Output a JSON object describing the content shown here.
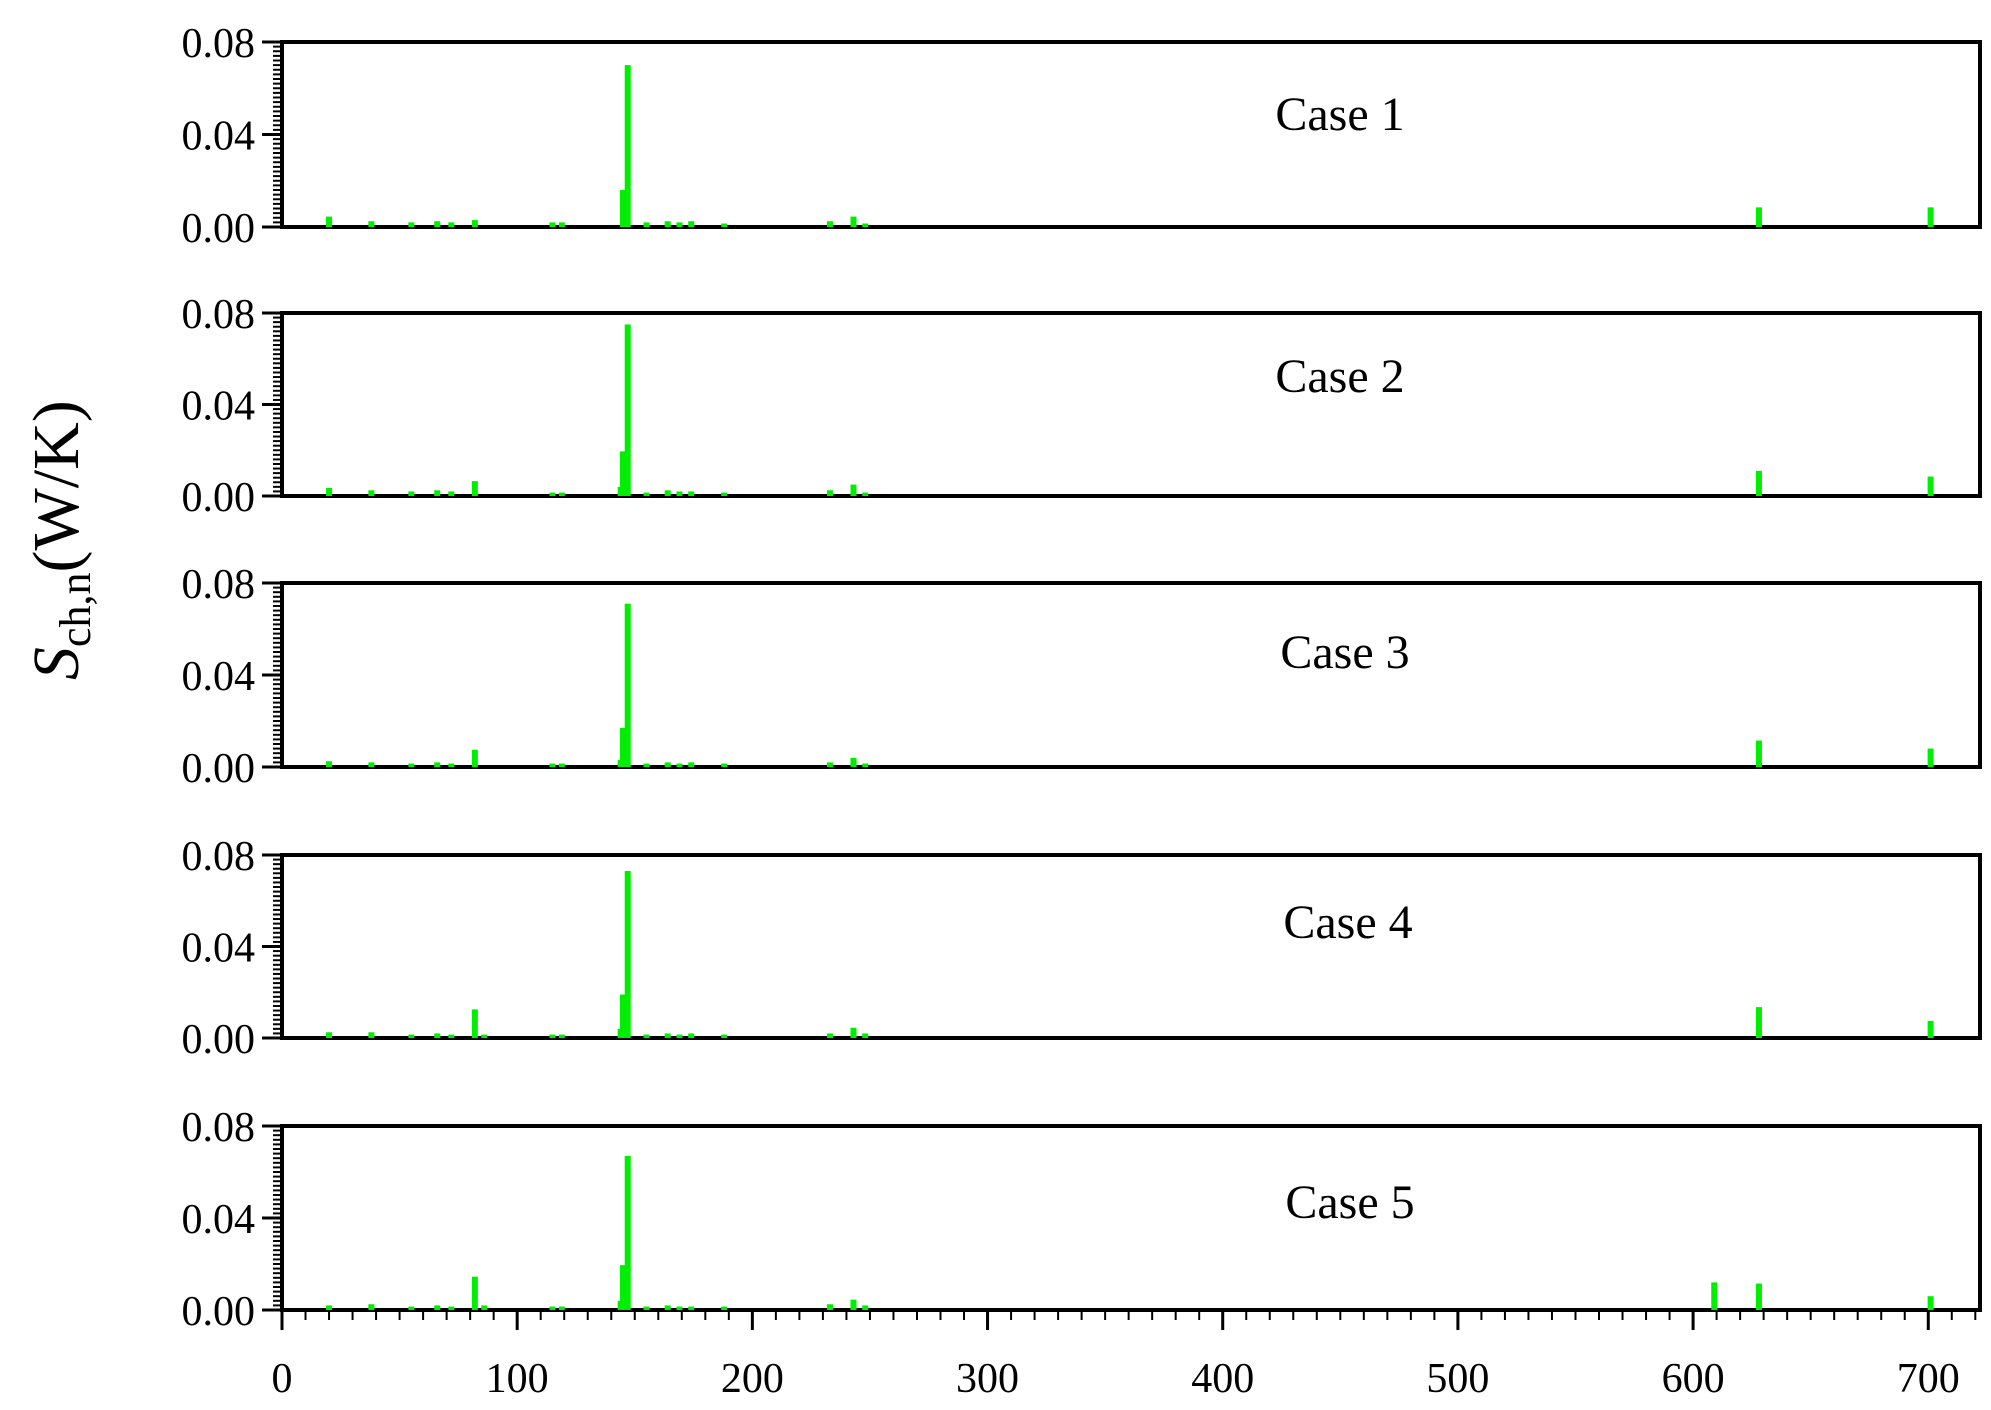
{
  "chart_data": {
    "type": "bar",
    "ylabel_main": "S",
    "ylabel_sub": "ch,n",
    "ylabel_unit": "(W/K)",
    "x_ticks": [
      "0",
      "100",
      "200",
      "300",
      "400",
      "500",
      "600",
      "700"
    ],
    "x_tick_values": [
      0,
      100,
      200,
      300,
      400,
      500,
      600,
      700
    ],
    "xlim": [
      0,
      722
    ],
    "y_ticks": [
      "0.00",
      "0.04",
      "0.08"
    ],
    "y_tick_values": [
      0,
      0.04,
      0.08
    ],
    "ylim": [
      0,
      0.08
    ],
    "bar_color": "#00ee00",
    "panels": [
      {
        "label": "Case 1",
        "bars": [
          {
            "x": 20,
            "y": 0.0045
          },
          {
            "x": 38,
            "y": 0.0025
          },
          {
            "x": 55,
            "y": 0.002
          },
          {
            "x": 66,
            "y": 0.0025
          },
          {
            "x": 72,
            "y": 0.002
          },
          {
            "x": 82,
            "y": 0.003
          },
          {
            "x": 115,
            "y": 0.002
          },
          {
            "x": 119,
            "y": 0.002
          },
          {
            "x": 145,
            "y": 0.016
          },
          {
            "x": 147,
            "y": 0.07
          },
          {
            "x": 155,
            "y": 0.002
          },
          {
            "x": 164,
            "y": 0.0025
          },
          {
            "x": 169,
            "y": 0.002
          },
          {
            "x": 174,
            "y": 0.0025
          },
          {
            "x": 188,
            "y": 0.0015
          },
          {
            "x": 233,
            "y": 0.0025
          },
          {
            "x": 243,
            "y": 0.0045
          },
          {
            "x": 248,
            "y": 0.0015
          },
          {
            "x": 628,
            "y": 0.0085
          },
          {
            "x": 701,
            "y": 0.0085
          }
        ]
      },
      {
        "label": "Case 2",
        "bars": [
          {
            "x": 20,
            "y": 0.0035
          },
          {
            "x": 38,
            "y": 0.0025
          },
          {
            "x": 55,
            "y": 0.002
          },
          {
            "x": 66,
            "y": 0.0025
          },
          {
            "x": 72,
            "y": 0.002
          },
          {
            "x": 82,
            "y": 0.0065
          },
          {
            "x": 115,
            "y": 0.0015
          },
          {
            "x": 119,
            "y": 0.0015
          },
          {
            "x": 144,
            "y": 0.004
          },
          {
            "x": 145,
            "y": 0.0195
          },
          {
            "x": 147,
            "y": 0.075
          },
          {
            "x": 155,
            "y": 0.0015
          },
          {
            "x": 164,
            "y": 0.0025
          },
          {
            "x": 169,
            "y": 0.002
          },
          {
            "x": 174,
            "y": 0.002
          },
          {
            "x": 188,
            "y": 0.0015
          },
          {
            "x": 233,
            "y": 0.0025
          },
          {
            "x": 243,
            "y": 0.005
          },
          {
            "x": 248,
            "y": 0.0015
          },
          {
            "x": 628,
            "y": 0.011
          },
          {
            "x": 701,
            "y": 0.0085
          }
        ]
      },
      {
        "label": "Case 3",
        "bars": [
          {
            "x": 20,
            "y": 0.0025
          },
          {
            "x": 38,
            "y": 0.002
          },
          {
            "x": 55,
            "y": 0.0015
          },
          {
            "x": 66,
            "y": 0.002
          },
          {
            "x": 72,
            "y": 0.0015
          },
          {
            "x": 82,
            "y": 0.0075
          },
          {
            "x": 115,
            "y": 0.0015
          },
          {
            "x": 119,
            "y": 0.0015
          },
          {
            "x": 144,
            "y": 0.003
          },
          {
            "x": 145,
            "y": 0.017
          },
          {
            "x": 147,
            "y": 0.071
          },
          {
            "x": 155,
            "y": 0.0015
          },
          {
            "x": 164,
            "y": 0.002
          },
          {
            "x": 169,
            "y": 0.0015
          },
          {
            "x": 174,
            "y": 0.002
          },
          {
            "x": 188,
            "y": 0.0015
          },
          {
            "x": 233,
            "y": 0.002
          },
          {
            "x": 243,
            "y": 0.004
          },
          {
            "x": 248,
            "y": 0.0015
          },
          {
            "x": 628,
            "y": 0.0115
          },
          {
            "x": 701,
            "y": 0.008
          }
        ]
      },
      {
        "label": "Case 4",
        "bars": [
          {
            "x": 20,
            "y": 0.0025
          },
          {
            "x": 38,
            "y": 0.0025
          },
          {
            "x": 55,
            "y": 0.0015
          },
          {
            "x": 66,
            "y": 0.002
          },
          {
            "x": 72,
            "y": 0.0015
          },
          {
            "x": 82,
            "y": 0.0125
          },
          {
            "x": 86,
            "y": 0.0015
          },
          {
            "x": 115,
            "y": 0.0015
          },
          {
            "x": 119,
            "y": 0.0015
          },
          {
            "x": 144,
            "y": 0.004
          },
          {
            "x": 145,
            "y": 0.019
          },
          {
            "x": 147,
            "y": 0.073
          },
          {
            "x": 155,
            "y": 0.0015
          },
          {
            "x": 164,
            "y": 0.002
          },
          {
            "x": 169,
            "y": 0.0015
          },
          {
            "x": 174,
            "y": 0.002
          },
          {
            "x": 188,
            "y": 0.0015
          },
          {
            "x": 233,
            "y": 0.002
          },
          {
            "x": 243,
            "y": 0.0045
          },
          {
            "x": 248,
            "y": 0.002
          },
          {
            "x": 628,
            "y": 0.0135
          },
          {
            "x": 701,
            "y": 0.0075
          }
        ]
      },
      {
        "label": "Case 5",
        "bars": [
          {
            "x": 20,
            "y": 0.002
          },
          {
            "x": 38,
            "y": 0.0025
          },
          {
            "x": 55,
            "y": 0.0015
          },
          {
            "x": 66,
            "y": 0.002
          },
          {
            "x": 72,
            "y": 0.0015
          },
          {
            "x": 82,
            "y": 0.0145
          },
          {
            "x": 86,
            "y": 0.002
          },
          {
            "x": 115,
            "y": 0.0015
          },
          {
            "x": 119,
            "y": 0.0015
          },
          {
            "x": 144,
            "y": 0.004
          },
          {
            "x": 145,
            "y": 0.0195
          },
          {
            "x": 147,
            "y": 0.067
          },
          {
            "x": 155,
            "y": 0.0015
          },
          {
            "x": 164,
            "y": 0.002
          },
          {
            "x": 169,
            "y": 0.0015
          },
          {
            "x": 174,
            "y": 0.0015
          },
          {
            "x": 188,
            "y": 0.0015
          },
          {
            "x": 233,
            "y": 0.0025
          },
          {
            "x": 243,
            "y": 0.0045
          },
          {
            "x": 248,
            "y": 0.002
          },
          {
            "x": 609,
            "y": 0.012
          },
          {
            "x": 628,
            "y": 0.0115
          },
          {
            "x": 701,
            "y": 0.006
          }
        ]
      }
    ]
  }
}
